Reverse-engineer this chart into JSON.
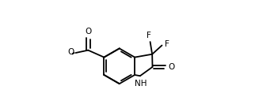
{
  "bg_color": "#ffffff",
  "line_color": "#000000",
  "line_width": 1.3,
  "font_size": 7.5,
  "figsize": [
    3.22,
    1.42
  ],
  "dpi": 100,
  "xlim": [
    -0.05,
    1.05
  ],
  "ylim": [
    -0.05,
    1.05
  ]
}
